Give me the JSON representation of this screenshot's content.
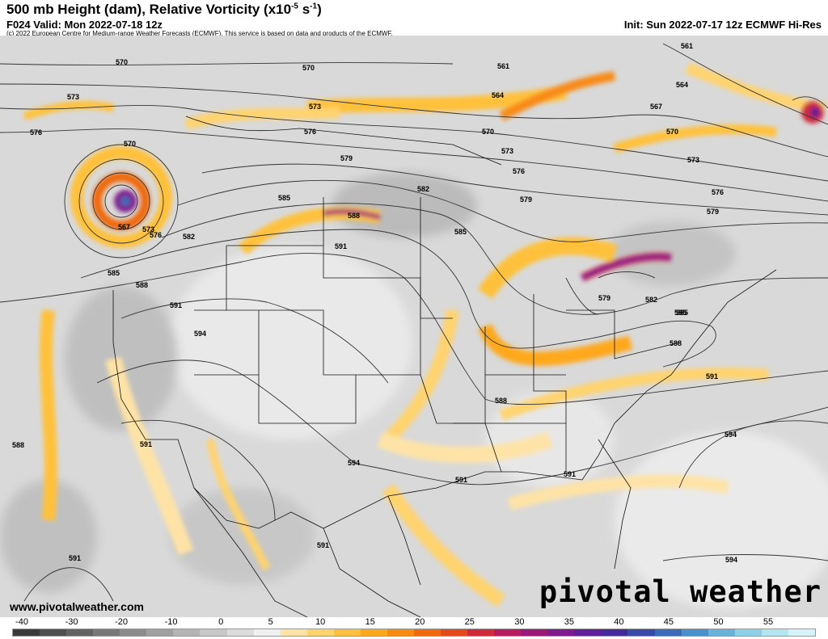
{
  "header": {
    "title": "500 mb Height (dam), Relative Vorticity (x10",
    "title_exp1": "-5",
    "title_mid": " s",
    "title_exp2": "-1",
    "title_end": ")",
    "valid": "F024 Valid: Mon 2022-07-18 12z",
    "init": "Init: Sun 2022-07-17 12z ECMWF Hi-Res",
    "credit": "(c) 2022 European Centre for Medium-range Weather Forecasts (ECMWF). This service is based on data and products of the ECMWF."
  },
  "footer": {
    "url": "www.pivotalweather.com",
    "brand": "pivotal weather"
  },
  "contour_labels": [
    "570",
    "573",
    "576",
    "570",
    "573",
    "576",
    "570",
    "561",
    "564",
    "567",
    "561",
    "564",
    "570",
    "573",
    "579",
    "576",
    "573",
    "570",
    "576",
    "579",
    "582",
    "585",
    "588",
    "579",
    "585",
    "591",
    "582",
    "576",
    "585",
    "573",
    "588",
    "591",
    "594",
    "585",
    "582",
    "579",
    "585",
    "588",
    "591",
    "588",
    "591",
    "594",
    "594",
    "591",
    "591",
    "591",
    "588",
    "594",
    "591",
    "567"
  ],
  "colorbar": {
    "ticks": [
      "-40",
      "-30",
      "-20",
      "-10",
      "0",
      "5",
      "10",
      "15",
      "20",
      "25",
      "30",
      "35",
      "40",
      "45",
      "50",
      "55"
    ],
    "colors": [
      "#3a3a3a",
      "#4f4f4f",
      "#636363",
      "#787878",
      "#8c8c8c",
      "#a0a0a0",
      "#b4b4b4",
      "#c8c8c8",
      "#dcdcdc",
      "#f0f0f0",
      "#ffe3a6",
      "#ffd36e",
      "#ffc13b",
      "#ffa81a",
      "#f88a12",
      "#ef6a0f",
      "#e34a1a",
      "#cf2a3c",
      "#b71c5e",
      "#9b1878",
      "#7e1a8e",
      "#5f1e9a",
      "#452a9c",
      "#3a4aa8",
      "#3a6cba",
      "#4a90cc",
      "#6ab2da",
      "#8ed0e6",
      "#b4e6f0",
      "#d6f4f8"
    ]
  }
}
